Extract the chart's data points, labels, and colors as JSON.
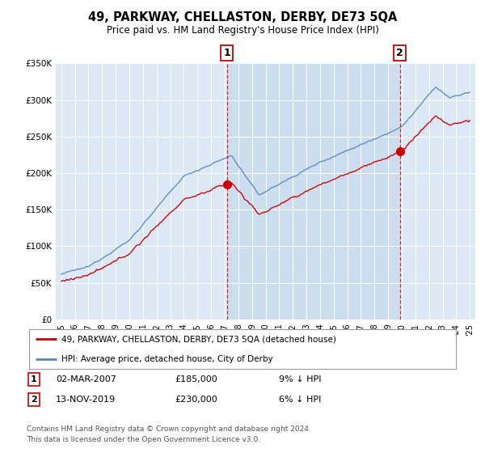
{
  "title": "49, PARKWAY, CHELLASTON, DERBY, DE73 5QA",
  "subtitle": "Price paid vs. HM Land Registry's House Price Index (HPI)",
  "red_label": "49, PARKWAY, CHELLASTON, DERBY, DE73 5QA (detached house)",
  "blue_label": "HPI: Average price, detached house, City of Derby",
  "annotation1": {
    "num": "1",
    "date": "02-MAR-2007",
    "price": "£185,000",
    "pct": "9% ↓ HPI"
  },
  "annotation2": {
    "num": "2",
    "date": "13-NOV-2019",
    "price": "£230,000",
    "pct": "6% ↓ HPI"
  },
  "footer1": "Contains HM Land Registry data © Crown copyright and database right 2024.",
  "footer2": "This data is licensed under the Open Government Licence v3.0.",
  "ylim": [
    0,
    350000
  ],
  "yticks": [
    0,
    50000,
    100000,
    150000,
    200000,
    250000,
    300000,
    350000
  ],
  "ytick_labels": [
    "£0",
    "£50K",
    "£100K",
    "£150K",
    "£200K",
    "£250K",
    "£300K",
    "£350K"
  ],
  "background_color": "#ffffff",
  "plot_bg": "#dce8f5",
  "grid_color": "#b8cfe0",
  "red_color": "#cc0000",
  "blue_color": "#5588bb",
  "shade_color": "#ccddf0",
  "sale1_year": 2007.17,
  "sale1_price": 185000,
  "sale2_year": 2019.87,
  "sale2_price": 230000,
  "xstart": 1995,
  "xend": 2025
}
